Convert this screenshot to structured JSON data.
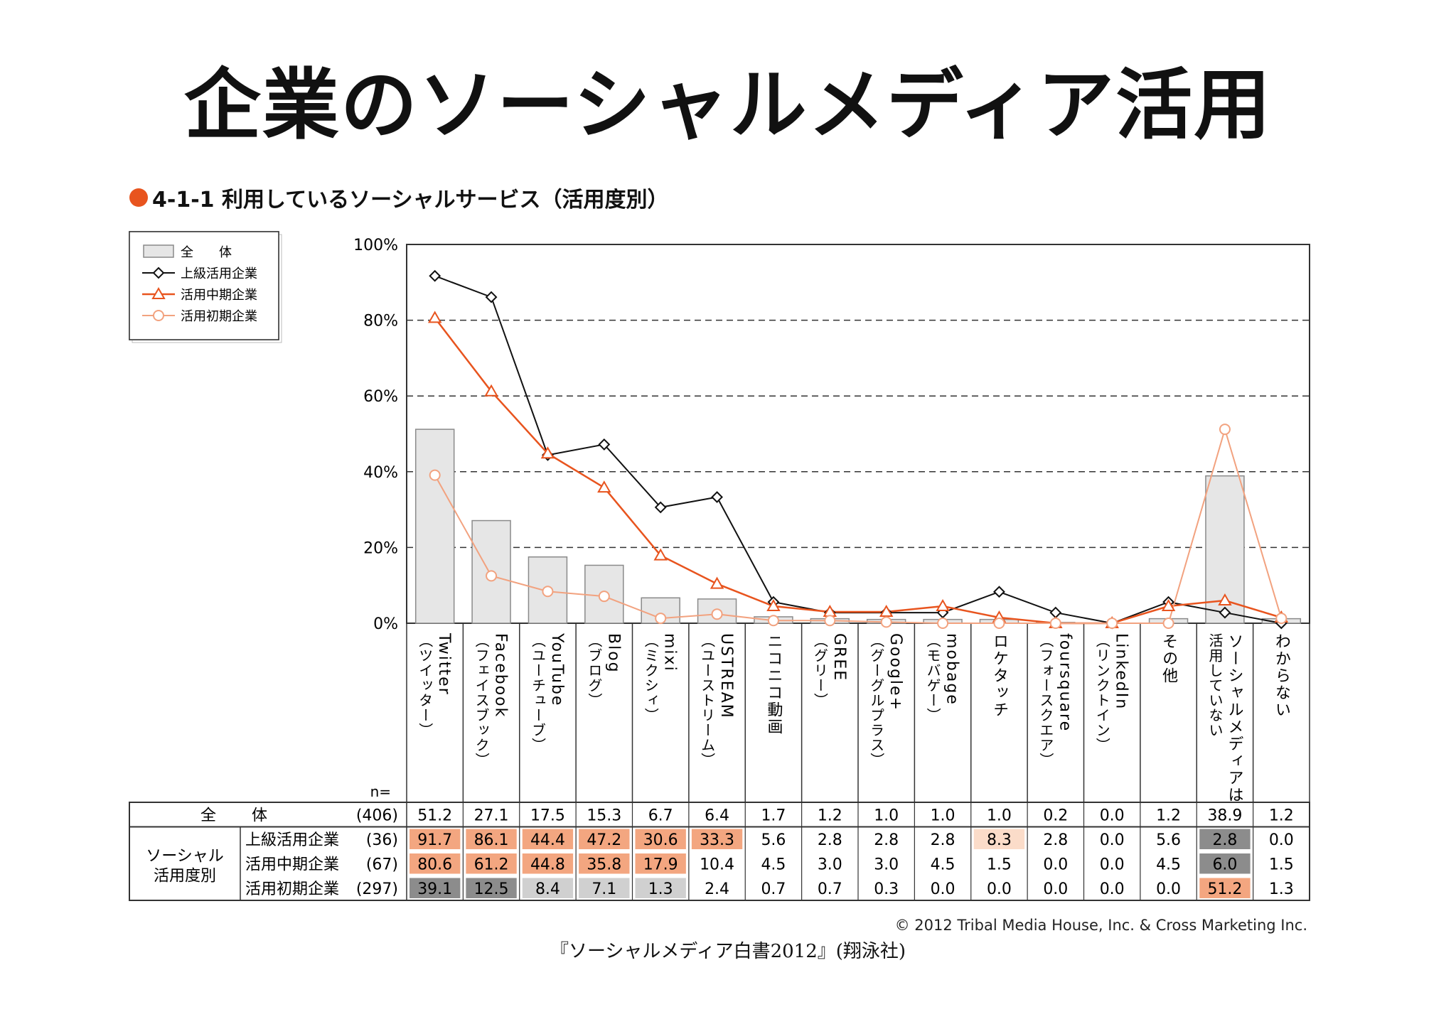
{
  "page_title": "企業のソーシャルメディア活用",
  "figure_label": "4-1-1 利用しているソーシャルサービス（活用度別）",
  "copyright": "© 2012 Tribal Media House, Inc. & Cross Marketing Inc.",
  "source": "『ソーシャルメディア白書2012』(翔泳社)",
  "colors": {
    "accent": "#e8541e",
    "bar_fill": "#e6e6e6",
    "bar_stroke": "#8a8a8a",
    "advanced_line": "#111111",
    "mid_line": "#e8541e",
    "beginner_line": "#f2a27f",
    "highlight_high": "#f3a680",
    "highlight_low": "#fbdcc9",
    "highlight_dark": "#8c8c8c",
    "highlight_light": "#d0d0d0"
  },
  "chart_data": {
    "type": "bar+line",
    "ylim": [
      0,
      100
    ],
    "yticks": [
      "0%",
      "20%",
      "40%",
      "60%",
      "80%",
      "100%"
    ],
    "categories": [
      {
        "name": "Twitter",
        "sub": "（ツイッター）"
      },
      {
        "name": "Facebook",
        "sub": "（フェイスブック）"
      },
      {
        "name": "YouTube",
        "sub": "（ユーチューブ）"
      },
      {
        "name": "Blog",
        "sub": "（ブログ）"
      },
      {
        "name": "mixi",
        "sub": "（ミクシィ）"
      },
      {
        "name": "USTREAM",
        "sub": "（ユーストリーム）"
      },
      {
        "name": "ニコニコ動画",
        "sub": ""
      },
      {
        "name": "GREE",
        "sub": "（グリー）"
      },
      {
        "name": "Google+",
        "sub": "（グーグルプラス）"
      },
      {
        "name": "mobage",
        "sub": "（モバゲー）"
      },
      {
        "name": "ロケタッチ",
        "sub": ""
      },
      {
        "name": "foursquare",
        "sub": "（フォースクエア）"
      },
      {
        "name": "LinkedIn",
        "sub": "（リンクトイン）"
      },
      {
        "name": "その他",
        "sub": ""
      },
      {
        "name": "ソーシャルメディアは",
        "sub": "活用していない"
      },
      {
        "name": "わからない",
        "sub": ""
      }
    ],
    "legend": [
      "全　　体",
      "上級活用企業",
      "活用中期企業",
      "活用初期企業"
    ],
    "table_n_label": "n=",
    "group_label": [
      "ソーシャル",
      "活用度別"
    ],
    "series": [
      {
        "name": "全　　体",
        "n": "(406)",
        "kind": "bar",
        "values": [
          51.2,
          27.1,
          17.5,
          15.3,
          6.7,
          6.4,
          1.7,
          1.2,
          1.0,
          1.0,
          1.0,
          0.2,
          0.0,
          1.2,
          38.9,
          1.2
        ],
        "labels": [
          "51.2",
          "27.1",
          "17.5",
          "15.3",
          "6.7",
          "6.4",
          "1.7",
          "1.2",
          "1.0",
          "1.0",
          "1.0",
          "0.2",
          "0.0",
          "1.2",
          "38.9",
          "1.2"
        ],
        "highlight": [
          "",
          "",
          "",
          "",
          "",
          "",
          "",
          "",
          "",
          "",
          "",
          "",
          "",
          "",
          "",
          ""
        ]
      },
      {
        "name": "上級活用企業",
        "n": "(36)",
        "kind": "line-diamond",
        "values": [
          91.7,
          86.1,
          44.4,
          47.2,
          30.6,
          33.3,
          5.6,
          2.8,
          2.8,
          2.8,
          8.3,
          2.8,
          0.0,
          5.6,
          2.8,
          0.0
        ],
        "labels": [
          "91.7",
          "86.1",
          "44.4",
          "47.2",
          "30.6",
          "33.3",
          "5.6",
          "2.8",
          "2.8",
          "2.8",
          "8.3",
          "2.8",
          "0.0",
          "5.6",
          "2.8",
          "0.0"
        ],
        "highlight": [
          "high",
          "high",
          "high",
          "high",
          "high",
          "high",
          "",
          "",
          "",
          "",
          "low",
          "",
          "",
          "",
          "dark",
          ""
        ]
      },
      {
        "name": "活用中期企業",
        "n": "(67)",
        "kind": "line-triangle",
        "values": [
          80.6,
          61.2,
          44.8,
          35.8,
          17.9,
          10.4,
          4.5,
          3.0,
          3.0,
          4.5,
          1.5,
          0.0,
          0.0,
          4.5,
          6.0,
          1.5
        ],
        "labels": [
          "80.6",
          "61.2",
          "44.8",
          "35.8",
          "17.9",
          "10.4",
          "4.5",
          "3.0",
          "3.0",
          "4.5",
          "1.5",
          "0.0",
          "0.0",
          "4.5",
          "6.0",
          "1.5"
        ],
        "highlight": [
          "high",
          "high",
          "high",
          "high",
          "high",
          "",
          "",
          "",
          "",
          "",
          "",
          "",
          "",
          "",
          "dark",
          ""
        ]
      },
      {
        "name": "活用初期企業",
        "n": "(297)",
        "kind": "line-circle",
        "values": [
          39.1,
          12.5,
          8.4,
          7.1,
          1.3,
          2.4,
          0.7,
          0.7,
          0.3,
          0.0,
          0.0,
          0.0,
          0.0,
          0.0,
          51.2,
          1.3
        ],
        "labels": [
          "39.1",
          "12.5",
          "8.4",
          "7.1",
          "1.3",
          "2.4",
          "0.7",
          "0.7",
          "0.3",
          "0.0",
          "0.0",
          "0.0",
          "0.0",
          "0.0",
          "51.2",
          "1.3"
        ],
        "highlight": [
          "dark",
          "dark",
          "light",
          "light",
          "light",
          "",
          "",
          "",
          "",
          "",
          "",
          "",
          "",
          "",
          "high",
          ""
        ]
      }
    ]
  }
}
